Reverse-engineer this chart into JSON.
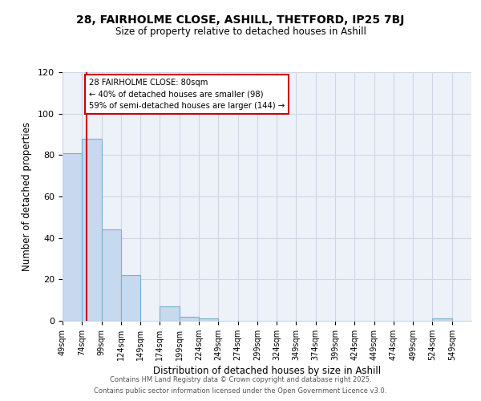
{
  "title1": "28, FAIRHOLME CLOSE, ASHILL, THETFORD, IP25 7BJ",
  "title2": "Size of property relative to detached houses in Ashill",
  "xlabel": "Distribution of detached houses by size in Ashill",
  "ylabel": "Number of detached properties",
  "bar_edges": [
    49,
    74,
    99,
    124,
    149,
    174,
    199,
    224,
    249,
    274,
    299,
    324,
    349,
    374,
    399,
    424,
    449,
    474,
    499,
    524,
    549
  ],
  "bar_heights": [
    81,
    88,
    44,
    22,
    0,
    7,
    2,
    1,
    0,
    0,
    0,
    0,
    0,
    0,
    0,
    0,
    0,
    0,
    0,
    1,
    0
  ],
  "bar_color": "#c6d9ee",
  "bar_edge_color": "#7aafd4",
  "vline_x": 80,
  "vline_color": "#cc0000",
  "annotation_text": "28 FAIRHOLME CLOSE: 80sqm\n← 40% of detached houses are smaller (98)\n59% of semi-detached houses are larger (144) →",
  "annotation_box_color": "white",
  "annotation_box_edge_color": "#cc0000",
  "ylim": [
    0,
    120
  ],
  "yticks": [
    0,
    20,
    40,
    60,
    80,
    100,
    120
  ],
  "tick_labels": [
    "49sqm",
    "74sqm",
    "99sqm",
    "124sqm",
    "149sqm",
    "174sqm",
    "199sqm",
    "224sqm",
    "249sqm",
    "274sqm",
    "299sqm",
    "324sqm",
    "349sqm",
    "374sqm",
    "399sqm",
    "424sqm",
    "449sqm",
    "474sqm",
    "499sqm",
    "524sqm",
    "549sqm"
  ],
  "grid_color": "#ccd6e8",
  "bg_color": "#edf2f9",
  "footer1": "Contains HM Land Registry data © Crown copyright and database right 2025.",
  "footer2": "Contains public sector information licensed under the Open Government Licence v3.0."
}
